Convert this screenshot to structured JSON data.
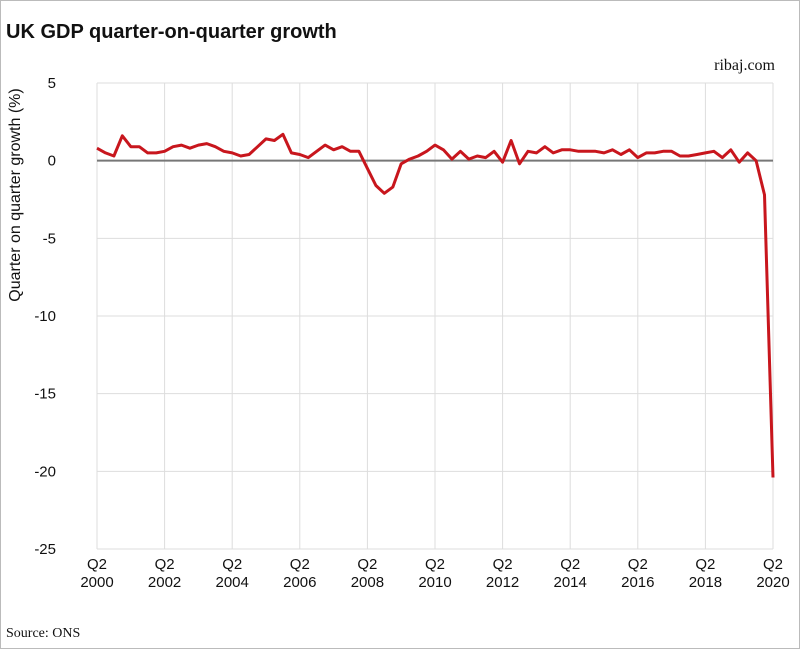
{
  "chart_data": {
    "type": "line",
    "title": "UK GDP quarter-on-quarter growth",
    "source_brand": "ribaj.com",
    "source": "Source: ONS",
    "y_label": "Quarter on quarter growth (%)",
    "color": "#c8161d",
    "categories": [
      "Q2 2000",
      null,
      null,
      null,
      null,
      null,
      null,
      null,
      "Q2 2002",
      null,
      null,
      null,
      null,
      null,
      null,
      null,
      "Q2 2004",
      null,
      null,
      null,
      null,
      null,
      null,
      null,
      "Q2 2006",
      null,
      null,
      null,
      null,
      null,
      null,
      null,
      "Q2 2008",
      null,
      null,
      null,
      null,
      null,
      null,
      null,
      "Q2 2010",
      null,
      null,
      null,
      null,
      null,
      null,
      null,
      "Q2 2012",
      null,
      null,
      null,
      null,
      null,
      null,
      null,
      "Q2 2014",
      null,
      null,
      null,
      null,
      null,
      null,
      null,
      "Q2 2016",
      null,
      null,
      null,
      null,
      null,
      null,
      null,
      "Q2 2018",
      null,
      null,
      null,
      null,
      null,
      null,
      null,
      "Q2 2020"
    ],
    "values": [
      0.8,
      0.5,
      0.3,
      1.6,
      0.9,
      0.9,
      0.5,
      0.5,
      0.6,
      0.9,
      1.0,
      0.8,
      1.0,
      1.1,
      0.9,
      0.6,
      0.5,
      0.3,
      0.4,
      0.9,
      1.4,
      1.3,
      1.7,
      0.5,
      0.4,
      0.2,
      0.6,
      1.0,
      0.7,
      0.9,
      0.6,
      0.6,
      -0.5,
      -1.6,
      -2.1,
      -1.7,
      -0.2,
      0.1,
      0.3,
      0.6,
      1.0,
      0.7,
      0.1,
      0.6,
      0.1,
      0.3,
      0.2,
      0.6,
      -0.1,
      1.3,
      -0.2,
      0.6,
      0.5,
      0.9,
      0.5,
      0.7,
      0.7,
      0.6,
      0.6,
      0.6,
      0.5,
      0.7,
      0.4,
      0.7,
      0.2,
      0.5,
      0.5,
      0.6,
      0.6,
      0.3,
      0.3,
      0.4,
      0.5,
      0.6,
      0.2,
      0.7,
      -0.1,
      0.5,
      0.0,
      -2.2,
      -20.4
    ],
    "ylim": [
      -25,
      5
    ],
    "yticks": [
      -25,
      -20,
      -15,
      -10,
      -5,
      0,
      5
    ],
    "grid": true
  }
}
